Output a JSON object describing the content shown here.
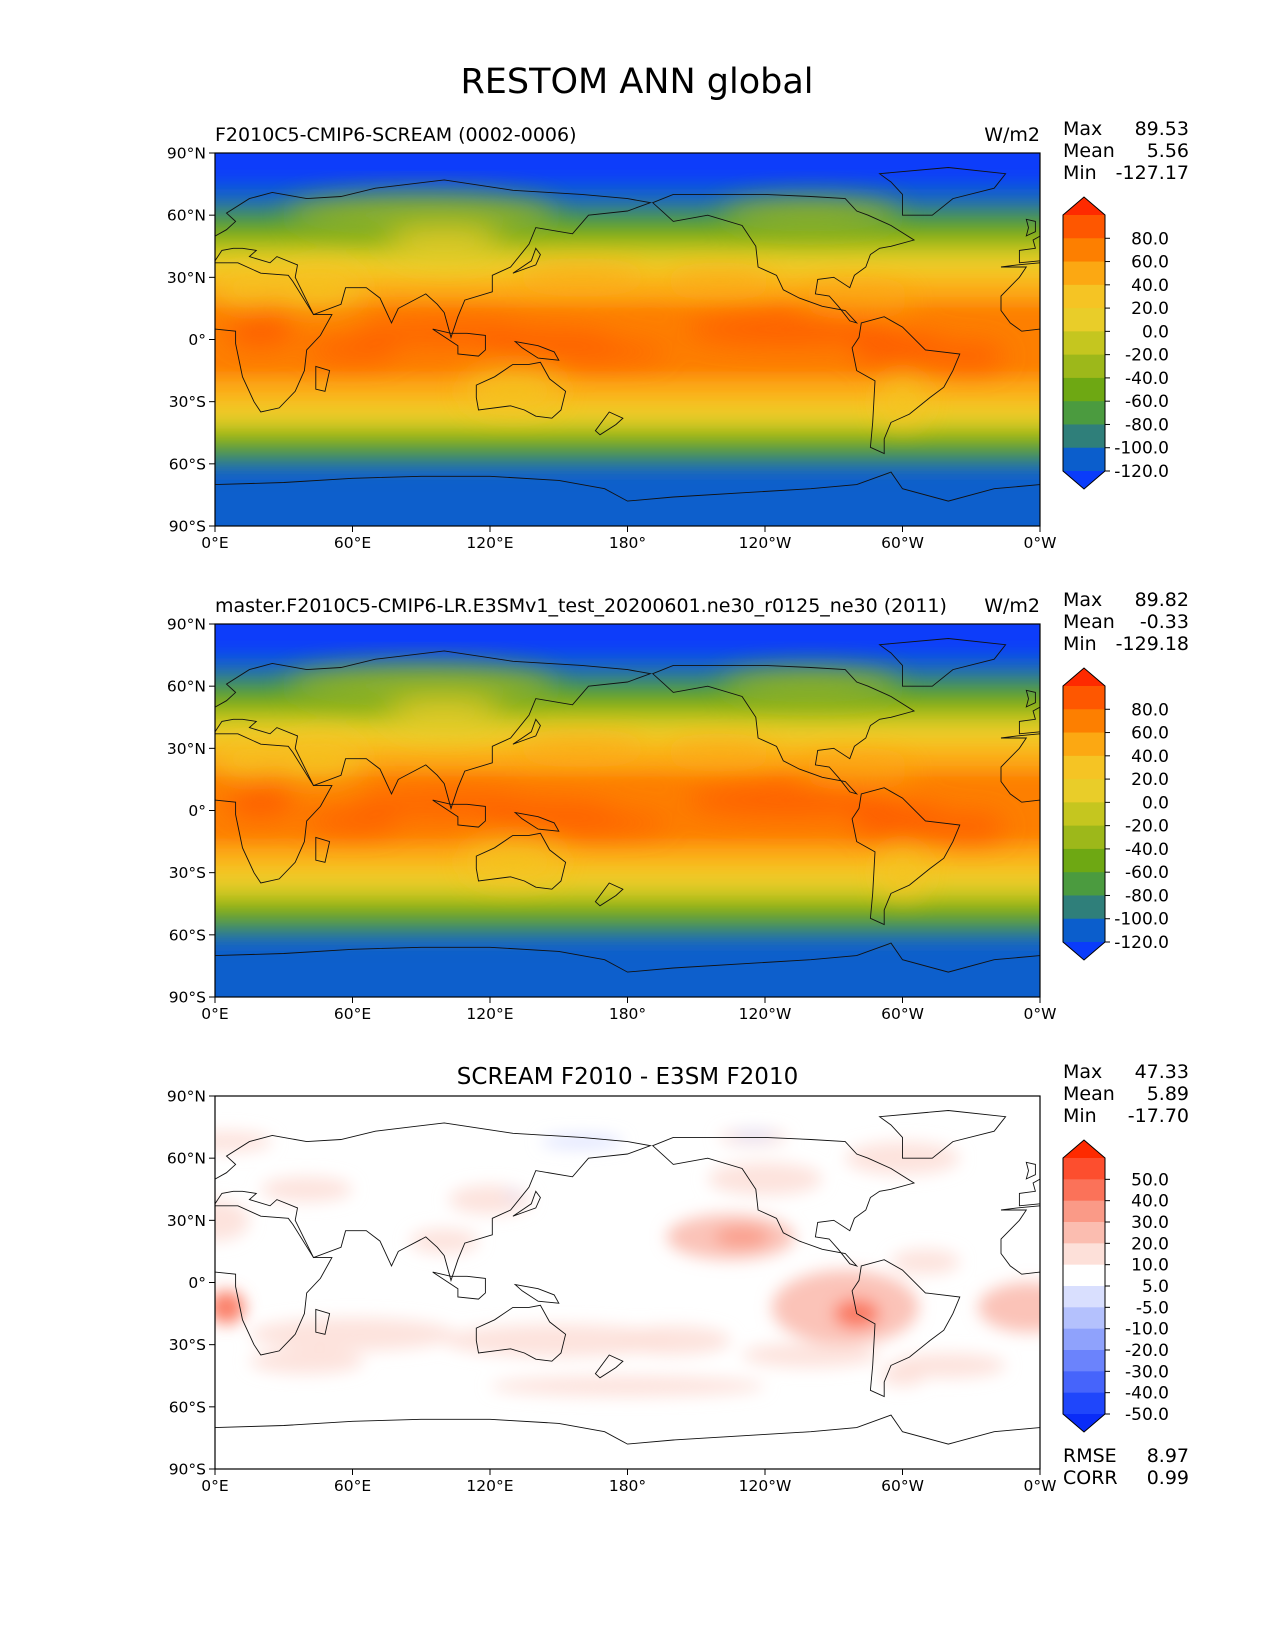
{
  "figure": {
    "title": "RESTOM ANN global"
  },
  "chart_data": [
    {
      "type": "heatmap",
      "title": "F2010C5-CMIP6-SCREAM (0002-0006)",
      "units": "W/m2",
      "stats": {
        "Max": "89.53",
        "Mean": "5.56",
        "Min": "-127.17"
      },
      "x_ticks": [
        "0°E",
        "60°E",
        "120°E",
        "180°",
        "120°W",
        "60°W",
        "0°W"
      ],
      "y_ticks": [
        "90°N",
        "60°N",
        "30°N",
        "0°",
        "30°S",
        "60°S",
        "90°S"
      ],
      "xlim": [
        0,
        360
      ],
      "ylim": [
        -90,
        90
      ],
      "colorbar": {
        "labels": [
          "80.0",
          "60.0",
          "40.0",
          "20.0",
          "0.0",
          "-20.0",
          "-40.0",
          "-60.0",
          "-80.0",
          "-100.0",
          "-120.0"
        ],
        "colors": [
          "#fe2a00",
          "#fe5700",
          "#fd7f00",
          "#fca812",
          "#f5c424",
          "#e9cd29",
          "#c5c61f",
          "#9db81a",
          "#6ea813",
          "#4b9b3f",
          "#2f7f7a",
          "#0b5ecc",
          "#0a3cfa"
        ]
      }
    },
    {
      "type": "heatmap",
      "title": "master.F2010C5-CMIP6-LR.E3SMv1_test_20200601.ne30_r0125_ne30 (2011)",
      "units": "W/m2",
      "stats": {
        "Max": "89.82",
        "Mean": "-0.33",
        "Min": "-129.18"
      },
      "x_ticks": [
        "0°E",
        "60°E",
        "120°E",
        "180°",
        "120°W",
        "60°W",
        "0°W"
      ],
      "y_ticks": [
        "90°N",
        "60°N",
        "30°N",
        "0°",
        "30°S",
        "60°S",
        "90°S"
      ],
      "xlim": [
        0,
        360
      ],
      "ylim": [
        -90,
        90
      ],
      "colorbar": {
        "labels": [
          "80.0",
          "60.0",
          "40.0",
          "20.0",
          "0.0",
          "-20.0",
          "-40.0",
          "-60.0",
          "-80.0",
          "-100.0",
          "-120.0"
        ],
        "colors": [
          "#fe2a00",
          "#fe5700",
          "#fd7f00",
          "#fca812",
          "#f5c424",
          "#e9cd29",
          "#c5c61f",
          "#9db81a",
          "#6ea813",
          "#4b9b3f",
          "#2f7f7a",
          "#0b5ecc",
          "#0a3cfa"
        ]
      }
    },
    {
      "type": "heatmap",
      "title": "SCREAM F2010 - E3SM F2010",
      "units": "",
      "stats": {
        "Max": "47.33",
        "Mean": "5.89",
        "Min": "-17.70",
        "RMSE": "8.97",
        "CORR": "0.99"
      },
      "x_ticks": [
        "0°E",
        "60°E",
        "120°E",
        "180°",
        "120°W",
        "60°W",
        "0°W"
      ],
      "y_ticks": [
        "90°N",
        "60°N",
        "30°N",
        "0°",
        "30°S",
        "60°S",
        "90°S"
      ],
      "xlim": [
        0,
        360
      ],
      "ylim": [
        -90,
        90
      ],
      "colorbar": {
        "labels": [
          "50.0",
          "40.0",
          "30.0",
          "20.0",
          "10.0",
          "5.0",
          "-5.0",
          "-10.0",
          "-20.0",
          "-30.0",
          "-40.0",
          "-50.0"
        ],
        "colors": [
          "#fe2a00",
          "#fd4e2e",
          "#fb7259",
          "#fa9a87",
          "#fbbdb0",
          "#fde0d9",
          "#ffffff",
          "#d9dffe",
          "#b4c1fd",
          "#8fa2fc",
          "#6b83fc",
          "#4664fb",
          "#1f46fb",
          "#0a2cf7"
        ]
      }
    }
  ]
}
